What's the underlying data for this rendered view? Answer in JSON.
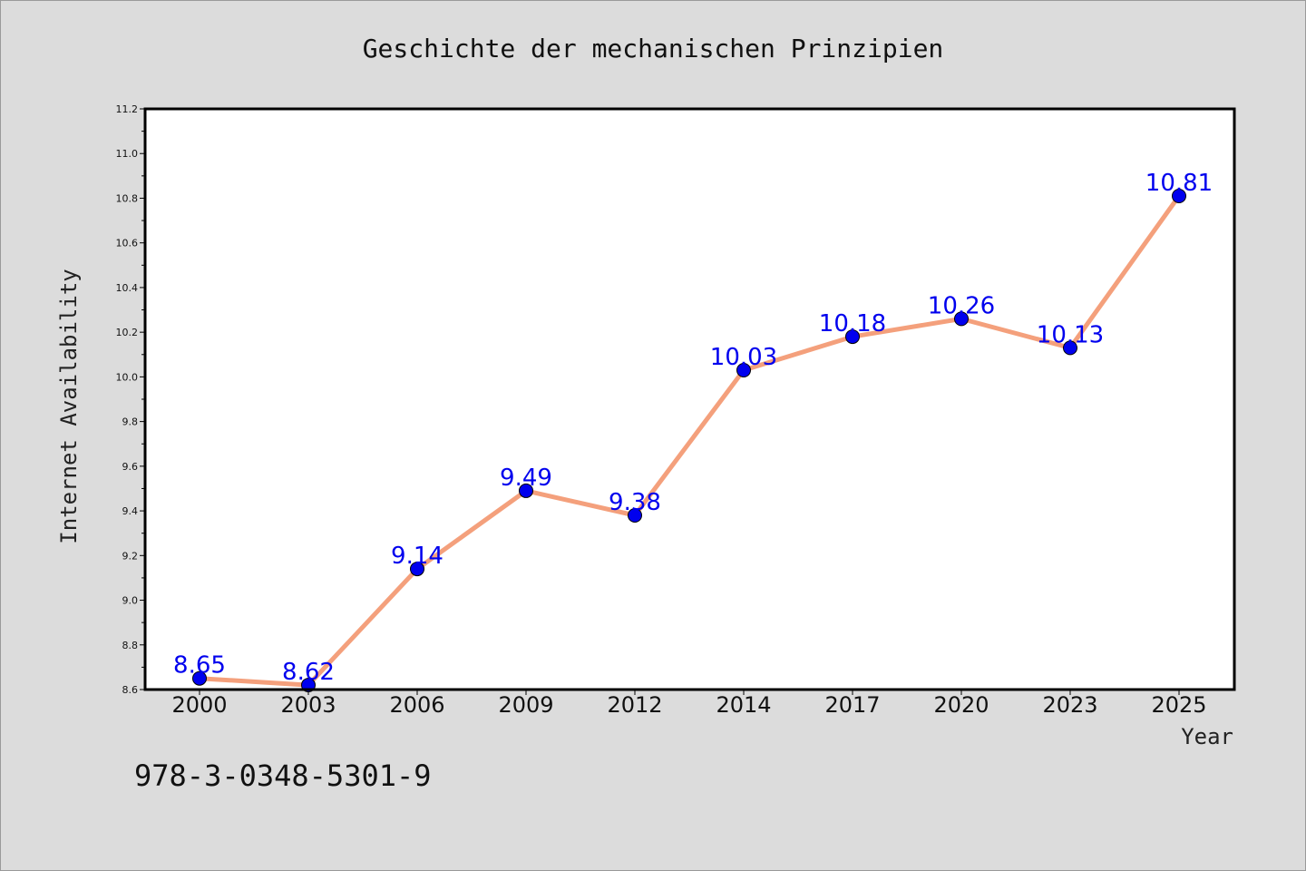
{
  "chart_data": {
    "type": "line",
    "title": "Geschichte der mechanischen Prinzipien",
    "xlabel": "Year",
    "ylabel": "Internet Availability",
    "categories": [
      "2000",
      "2003",
      "2006",
      "2009",
      "2012",
      "2014",
      "2017",
      "2020",
      "2023",
      "2025"
    ],
    "series": [
      {
        "values": [
          8.65,
          8.62,
          9.14,
          9.49,
          9.38,
          10.03,
          10.18,
          10.26,
          10.13,
          10.81
        ],
        "labels": [
          "8.65",
          "8.62",
          "9.14",
          "9.49",
          "9.38",
          "10.03",
          "10.18",
          "10.26",
          "10.13",
          "10.81"
        ]
      }
    ],
    "ylim": [
      8.6,
      11.2
    ],
    "yticks": [
      "8.6",
      "8.8",
      "9.0",
      "9.2",
      "9.4",
      "9.6",
      "9.8",
      "10.0",
      "10.2",
      "10.4",
      "10.6",
      "10.8",
      "11.0",
      "11.2"
    ],
    "grid": false,
    "colors": {
      "line": "#f4a07c",
      "marker": "#0000ee",
      "data_label": "#0000ee",
      "plot_background": "#ffffff",
      "figure_background": "#dcdcdc"
    }
  },
  "footer": {
    "isbn": "978-3-0348-5301-9"
  }
}
